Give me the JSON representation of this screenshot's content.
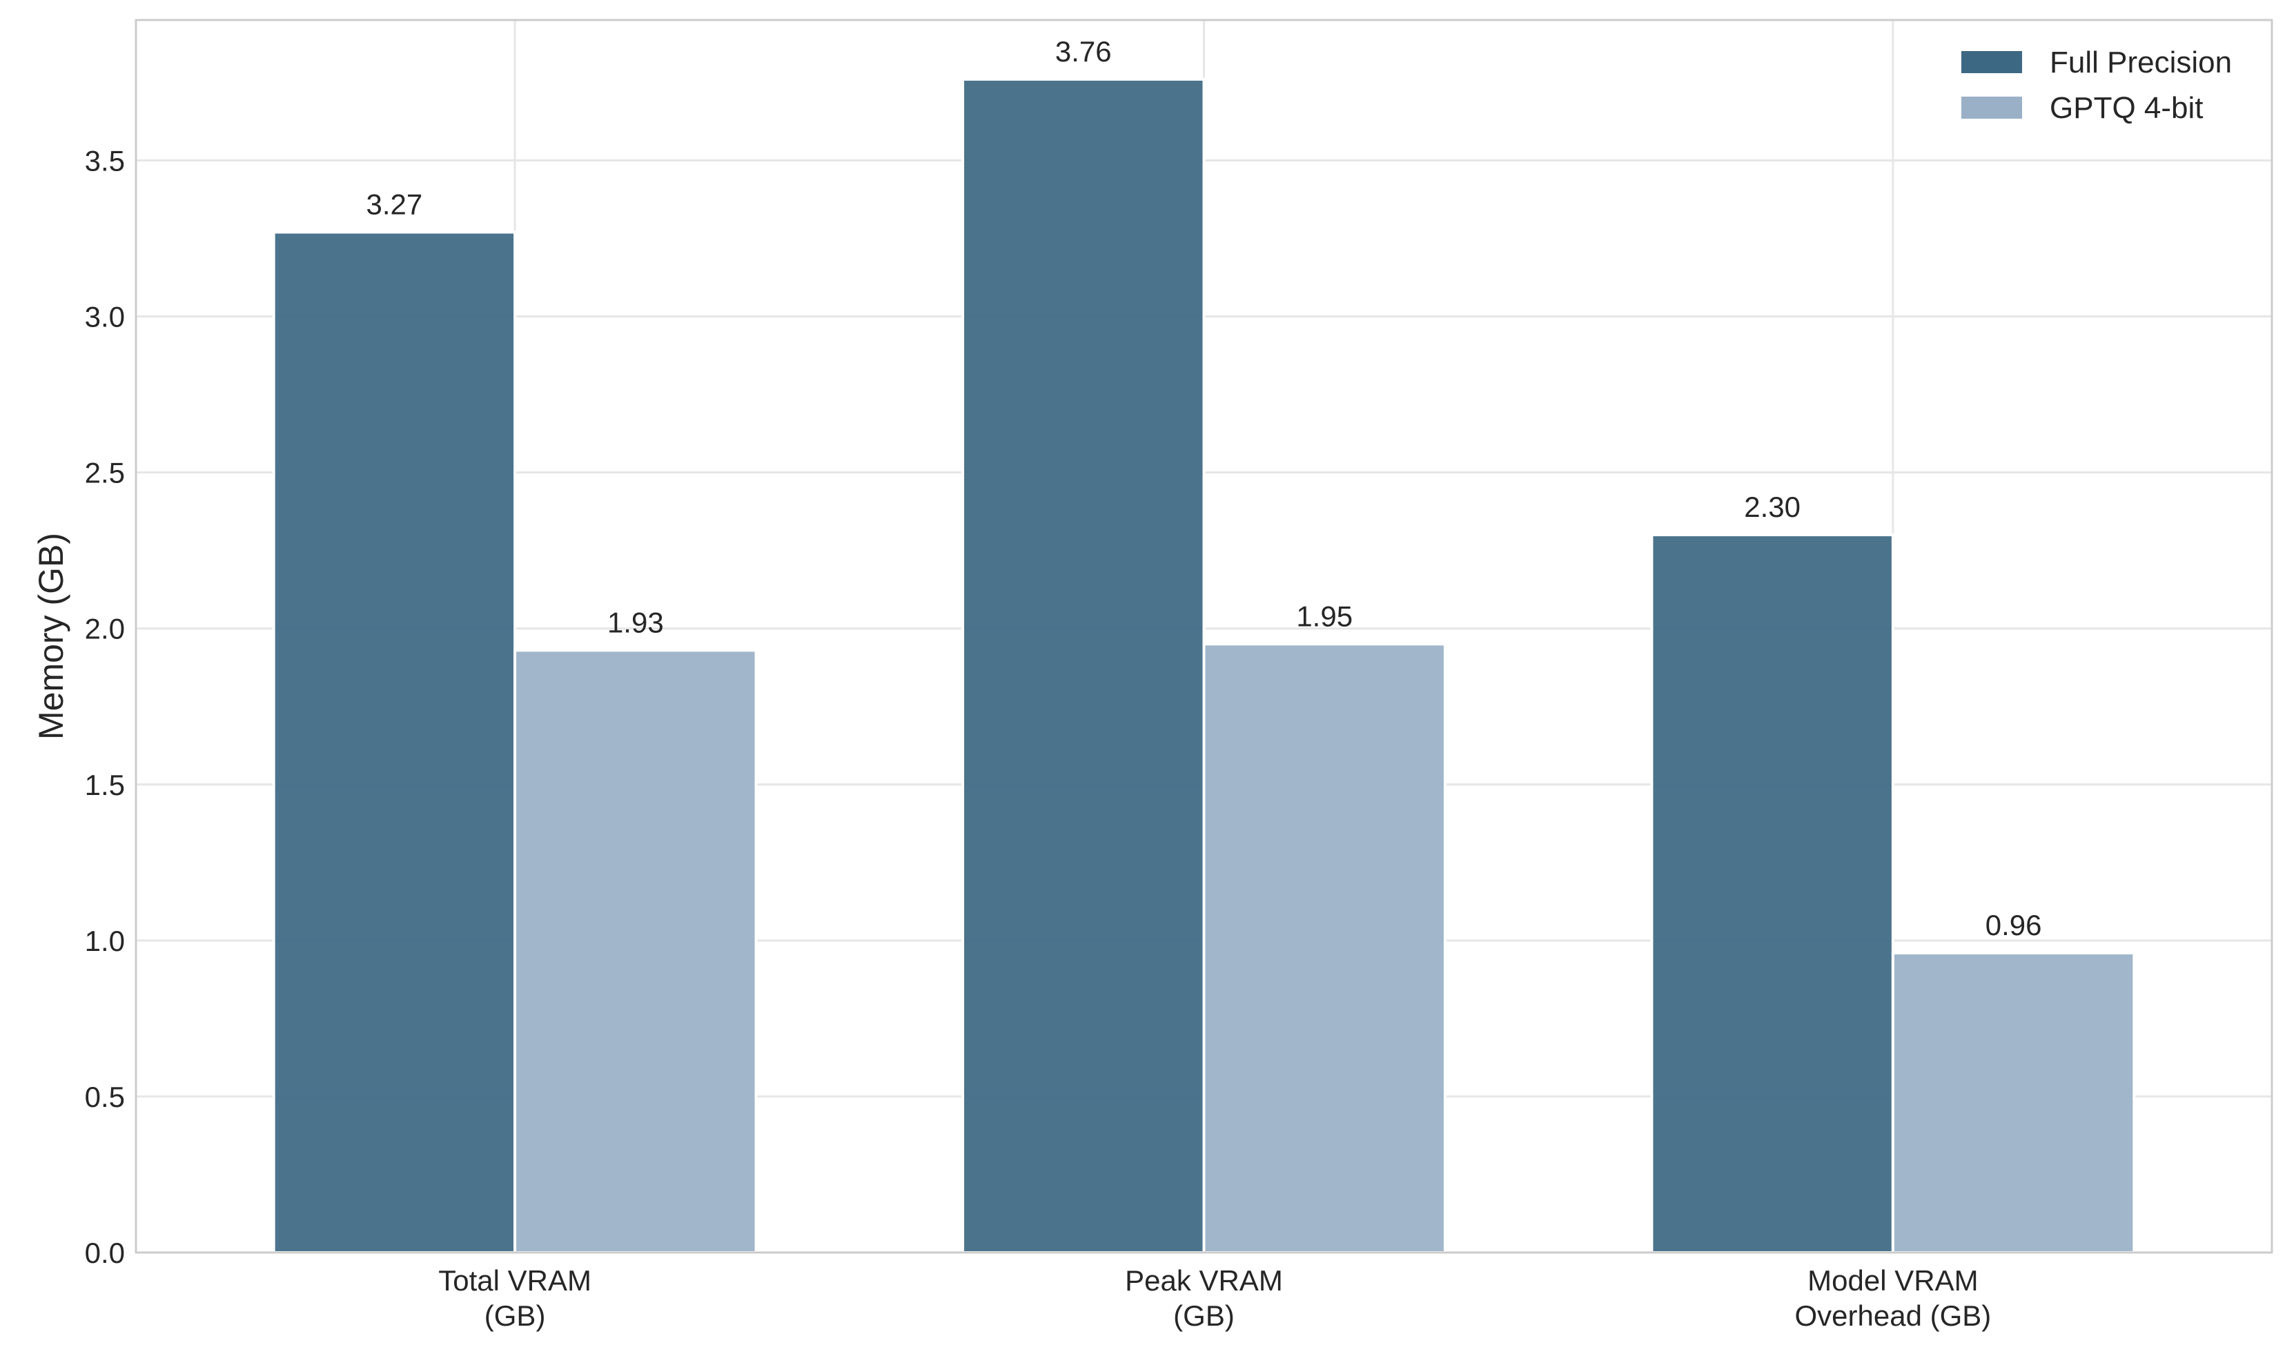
{
  "chart_data": {
    "type": "bar",
    "title": "",
    "xlabel": "",
    "ylabel": "Memory (GB)",
    "categories": [
      [
        "Total VRAM",
        "(GB)"
      ],
      [
        "Peak VRAM",
        "(GB)"
      ],
      [
        "Model VRAM",
        "Overhead (GB)"
      ]
    ],
    "series": [
      {
        "name": "Full Precision",
        "color": "#3d6883",
        "values": [
          3.27,
          3.76,
          2.3
        ]
      },
      {
        "name": "GPTQ 4-bit",
        "color": "#9ab0c6",
        "values": [
          1.93,
          1.95,
          0.96
        ]
      }
    ],
    "data_labels": [
      [
        "3.27",
        "3.76",
        "2.30"
      ],
      [
        "1.93",
        "1.95",
        "0.96"
      ]
    ],
    "ylim": [
      0,
      3.95
    ],
    "yticks": [
      "0.0",
      "0.5",
      "1.0",
      "1.5",
      "2.0",
      "2.5",
      "3.0",
      "3.5"
    ],
    "grid": true,
    "legend_position": "top-right"
  }
}
